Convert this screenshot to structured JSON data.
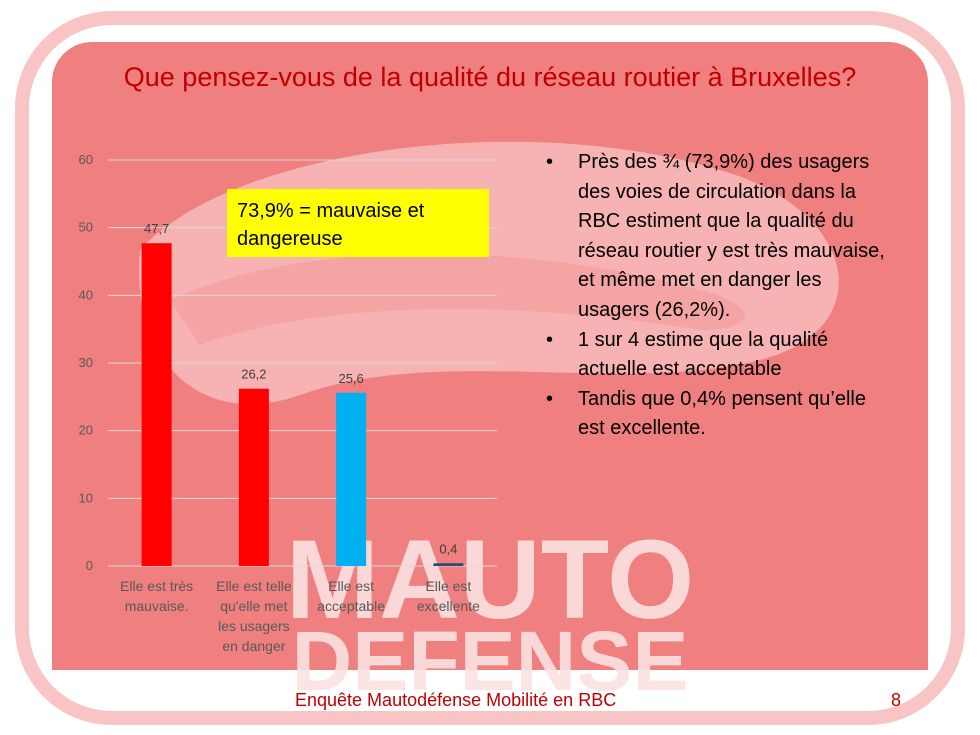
{
  "slide": {
    "title": "Que pensez-vous de la qualité du réseau routier à Bruxelles?",
    "callout": "73,9% = mauvaise et dangereuse",
    "bullets": [
      "Près des ¾ (73,9%) des usagers des voies de circulation dans la RBC estiment que la qualité du réseau routier y est très mauvaise, et même met en danger les  usagers (26,2%).",
      "1 sur 4 estime que la qualité actuelle est acceptable",
      "Tandis que 0,4% pensent qu’elle est excellente."
    ],
    "bullet_glyph": "•",
    "footer": "Enquête Mautodéfense Mobilité en RBC",
    "page_number": "8",
    "watermark_text": [
      "MAUTO",
      "DEFENSE"
    ]
  },
  "colors": {
    "title": "#c00000",
    "watermark": "#f07f7f",
    "bar_red": "#ff0000",
    "bar_blue": "#00b0f0",
    "bar_dark_blue": "#1f4e79",
    "callout_bg": "#ffff00"
  },
  "chart_data": {
    "type": "bar",
    "categories": [
      [
        "Elle est très",
        "mauvaise."
      ],
      [
        "Elle est telle",
        "qu'elle met",
        "les usagers",
        "en danger"
      ],
      [
        "Elle est",
        "acceptable"
      ],
      [
        "Elle est",
        "excellente"
      ]
    ],
    "values": [
      47.7,
      26.2,
      25.6,
      0.4
    ],
    "value_labels": [
      "47,7",
      "26,2",
      "25,6",
      "0,4"
    ],
    "bar_colors": [
      "#ff0000",
      "#ff0000",
      "#00b0f0",
      "#1f4e79"
    ],
    "yticks": [
      0,
      10,
      20,
      30,
      40,
      50,
      60
    ],
    "ylim": [
      0,
      60
    ],
    "grid": true
  }
}
